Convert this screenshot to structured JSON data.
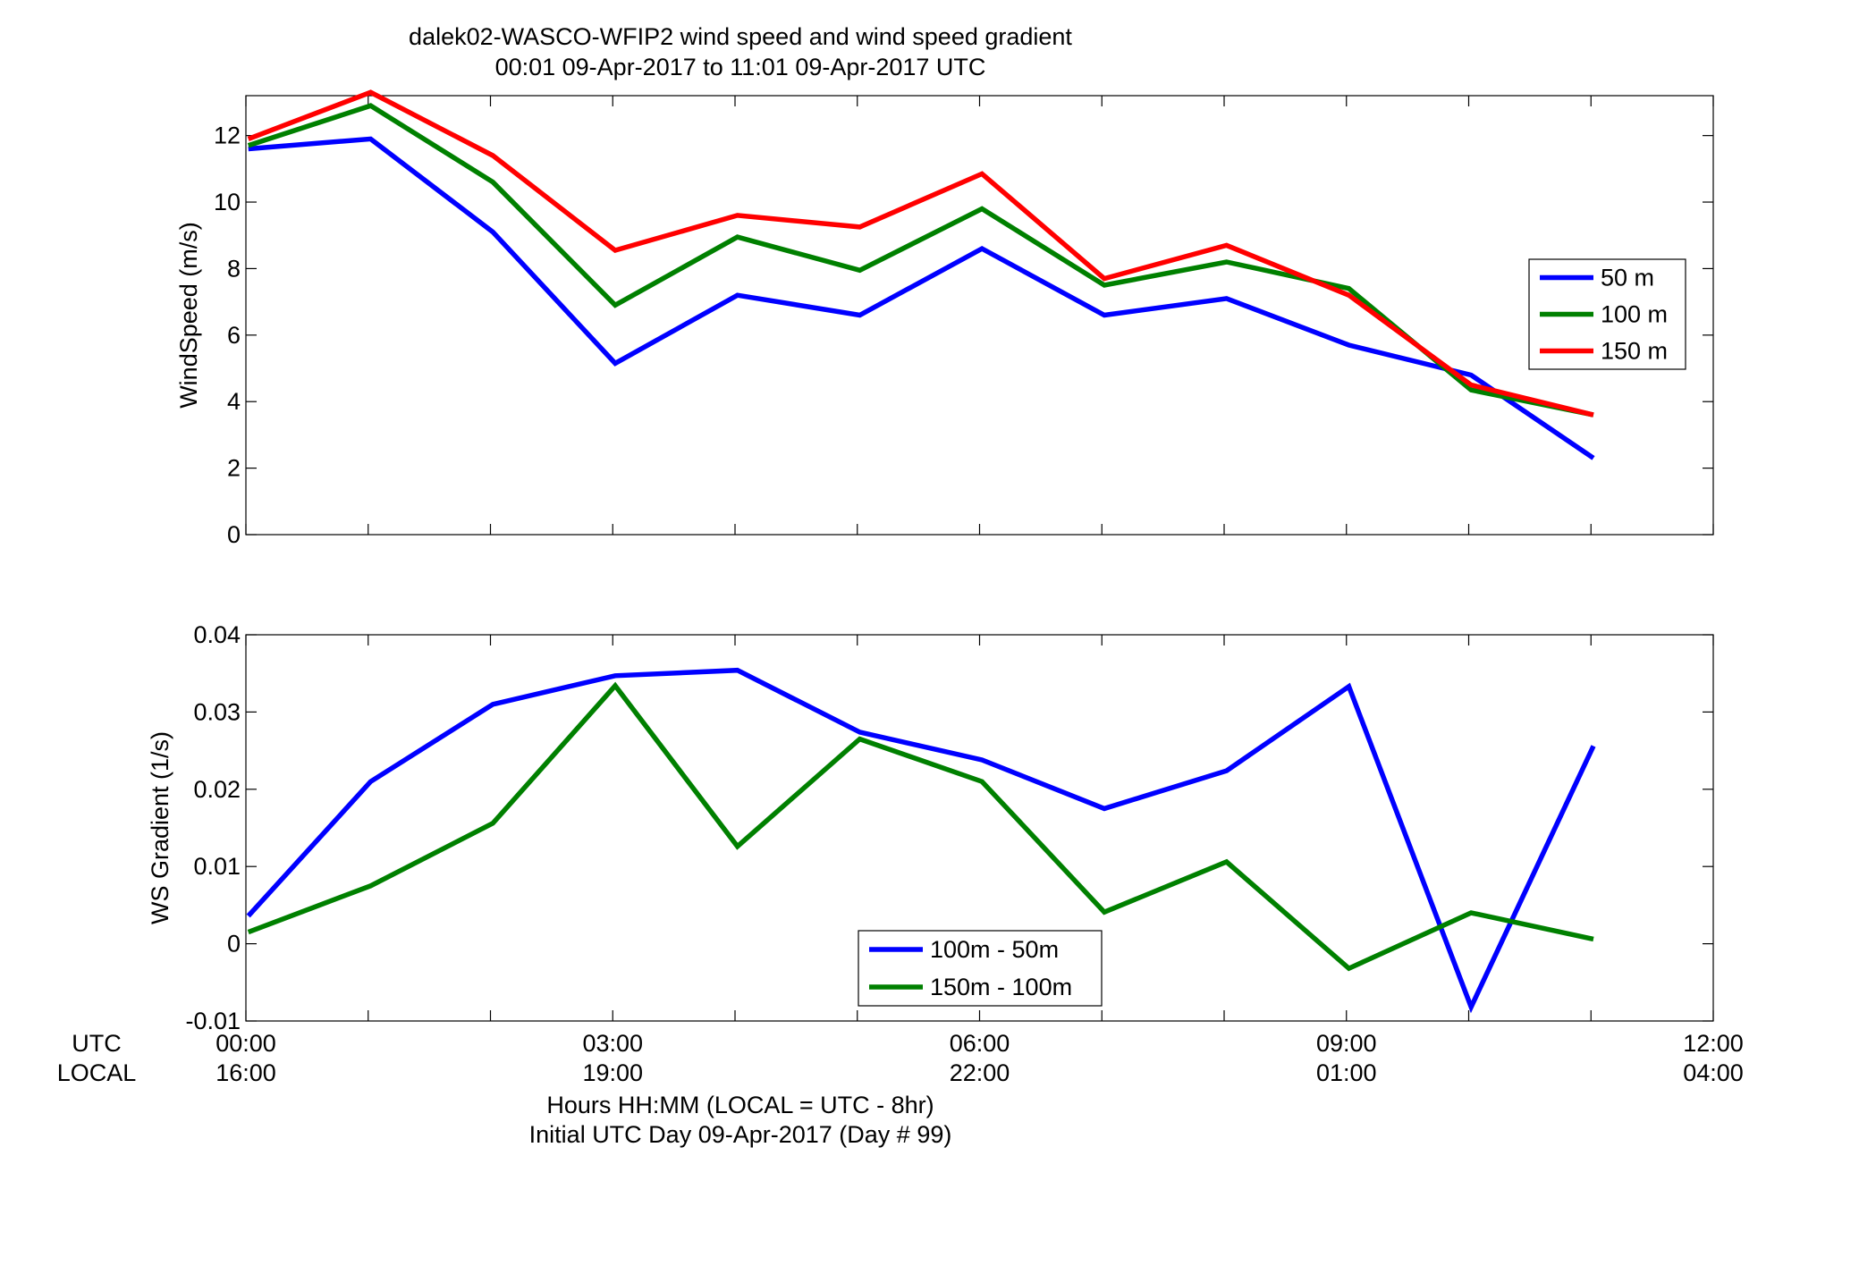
{
  "title_line1": "dalek02-WASCO-WFIP2  wind speed and wind speed gradient",
  "title_line2": "00:01 09-Apr-2017 to 11:01 09-Apr-2017  UTC",
  "row_labels": {
    "utc": "UTC",
    "local": "LOCAL"
  },
  "xlabel_line1": "Hours HH:MM  (LOCAL = UTC - 8hr)",
  "xlabel_line2": "Initial UTC Day 09-Apr-2017 (Day # 99)",
  "colors": {
    "blue": "#0000ff",
    "green": "#008000",
    "red": "#ff0000"
  },
  "chart_data": [
    {
      "type": "line",
      "title": "dalek02-WASCO-WFIP2  wind speed and wind speed gradient",
      "ylabel": "WindSpeed (m/s)",
      "xlabel": "Hours HH:MM  (LOCAL = UTC - 8hr)",
      "xlim": [
        0,
        12
      ],
      "ylim": [
        0,
        13.2
      ],
      "x_ticks": [
        0,
        1,
        2,
        3,
        4,
        5,
        6,
        7,
        8,
        9,
        10,
        11,
        12
      ],
      "y_ticks": [
        0,
        2,
        4,
        6,
        8,
        10,
        12
      ],
      "y_tick_labels": [
        "0",
        "2",
        "4",
        "6",
        "8",
        "10",
        "12"
      ],
      "legend_position": "right",
      "x": [
        0.02,
        1.02,
        2.02,
        3.02,
        4.02,
        5.02,
        6.02,
        7.02,
        8.02,
        9.02,
        10.02,
        11.02
      ],
      "series": [
        {
          "name": "50 m",
          "color": "#0000ff",
          "values": [
            11.6,
            11.9,
            9.1,
            5.15,
            7.2,
            6.6,
            8.6,
            6.6,
            7.1,
            5.7,
            4.8,
            2.3
          ]
        },
        {
          "name": "100 m",
          "color": "#008000",
          "values": [
            11.7,
            12.9,
            10.6,
            6.9,
            8.95,
            7.95,
            9.8,
            7.5,
            8.2,
            7.4,
            4.35,
            3.6
          ]
        },
        {
          "name": "150 m",
          "color": "#ff0000",
          "values": [
            11.9,
            13.3,
            11.4,
            8.55,
            9.6,
            9.25,
            10.85,
            7.7,
            8.7,
            7.2,
            4.5,
            3.6
          ]
        }
      ]
    },
    {
      "type": "line",
      "ylabel": "WS Gradient (1/s)",
      "xlabel": "Hours HH:MM  (LOCAL = UTC - 8hr)",
      "xlim": [
        0,
        12
      ],
      "ylim": [
        -0.01,
        0.04
      ],
      "x_ticks": [
        0,
        1,
        2,
        3,
        4,
        5,
        6,
        7,
        8,
        9,
        10,
        11,
        12
      ],
      "y_ticks": [
        -0.01,
        0,
        0.01,
        0.02,
        0.03,
        0.04
      ],
      "y_tick_labels": [
        "-0.01",
        "0",
        "0.01",
        "0.02",
        "0.03",
        "0.04"
      ],
      "legend_position": "bottom-center",
      "x": [
        0.02,
        1.02,
        2.02,
        3.02,
        4.02,
        5.02,
        6.02,
        7.02,
        8.02,
        9.02,
        10.02,
        11.02
      ],
      "series": [
        {
          "name": "100m - 50m",
          "color": "#0000ff",
          "values": [
            0.0036,
            0.021,
            0.031,
            0.0347,
            0.0354,
            0.0274,
            0.0238,
            0.0175,
            0.0224,
            0.0333,
            -0.0082,
            0.0256
          ]
        },
        {
          "name": "150m - 100m",
          "color": "#008000",
          "values": [
            0.0015,
            0.0075,
            0.0156,
            0.0334,
            0.0126,
            0.0265,
            0.021,
            0.0041,
            0.0106,
            -0.0032,
            0.004,
            0.0006
          ]
        }
      ]
    }
  ],
  "x_tick_labels_utc": [
    {
      "x": 0,
      "label": "00:00"
    },
    {
      "x": 3,
      "label": "03:00"
    },
    {
      "x": 6,
      "label": "06:00"
    },
    {
      "x": 9,
      "label": "09:00"
    },
    {
      "x": 12,
      "label": "12:00"
    }
  ],
  "x_tick_labels_local": [
    {
      "x": 0,
      "label": "16:00"
    },
    {
      "x": 3,
      "label": "19:00"
    },
    {
      "x": 6,
      "label": "22:00"
    },
    {
      "x": 9,
      "label": "01:00"
    },
    {
      "x": 12,
      "label": "04:00"
    }
  ]
}
